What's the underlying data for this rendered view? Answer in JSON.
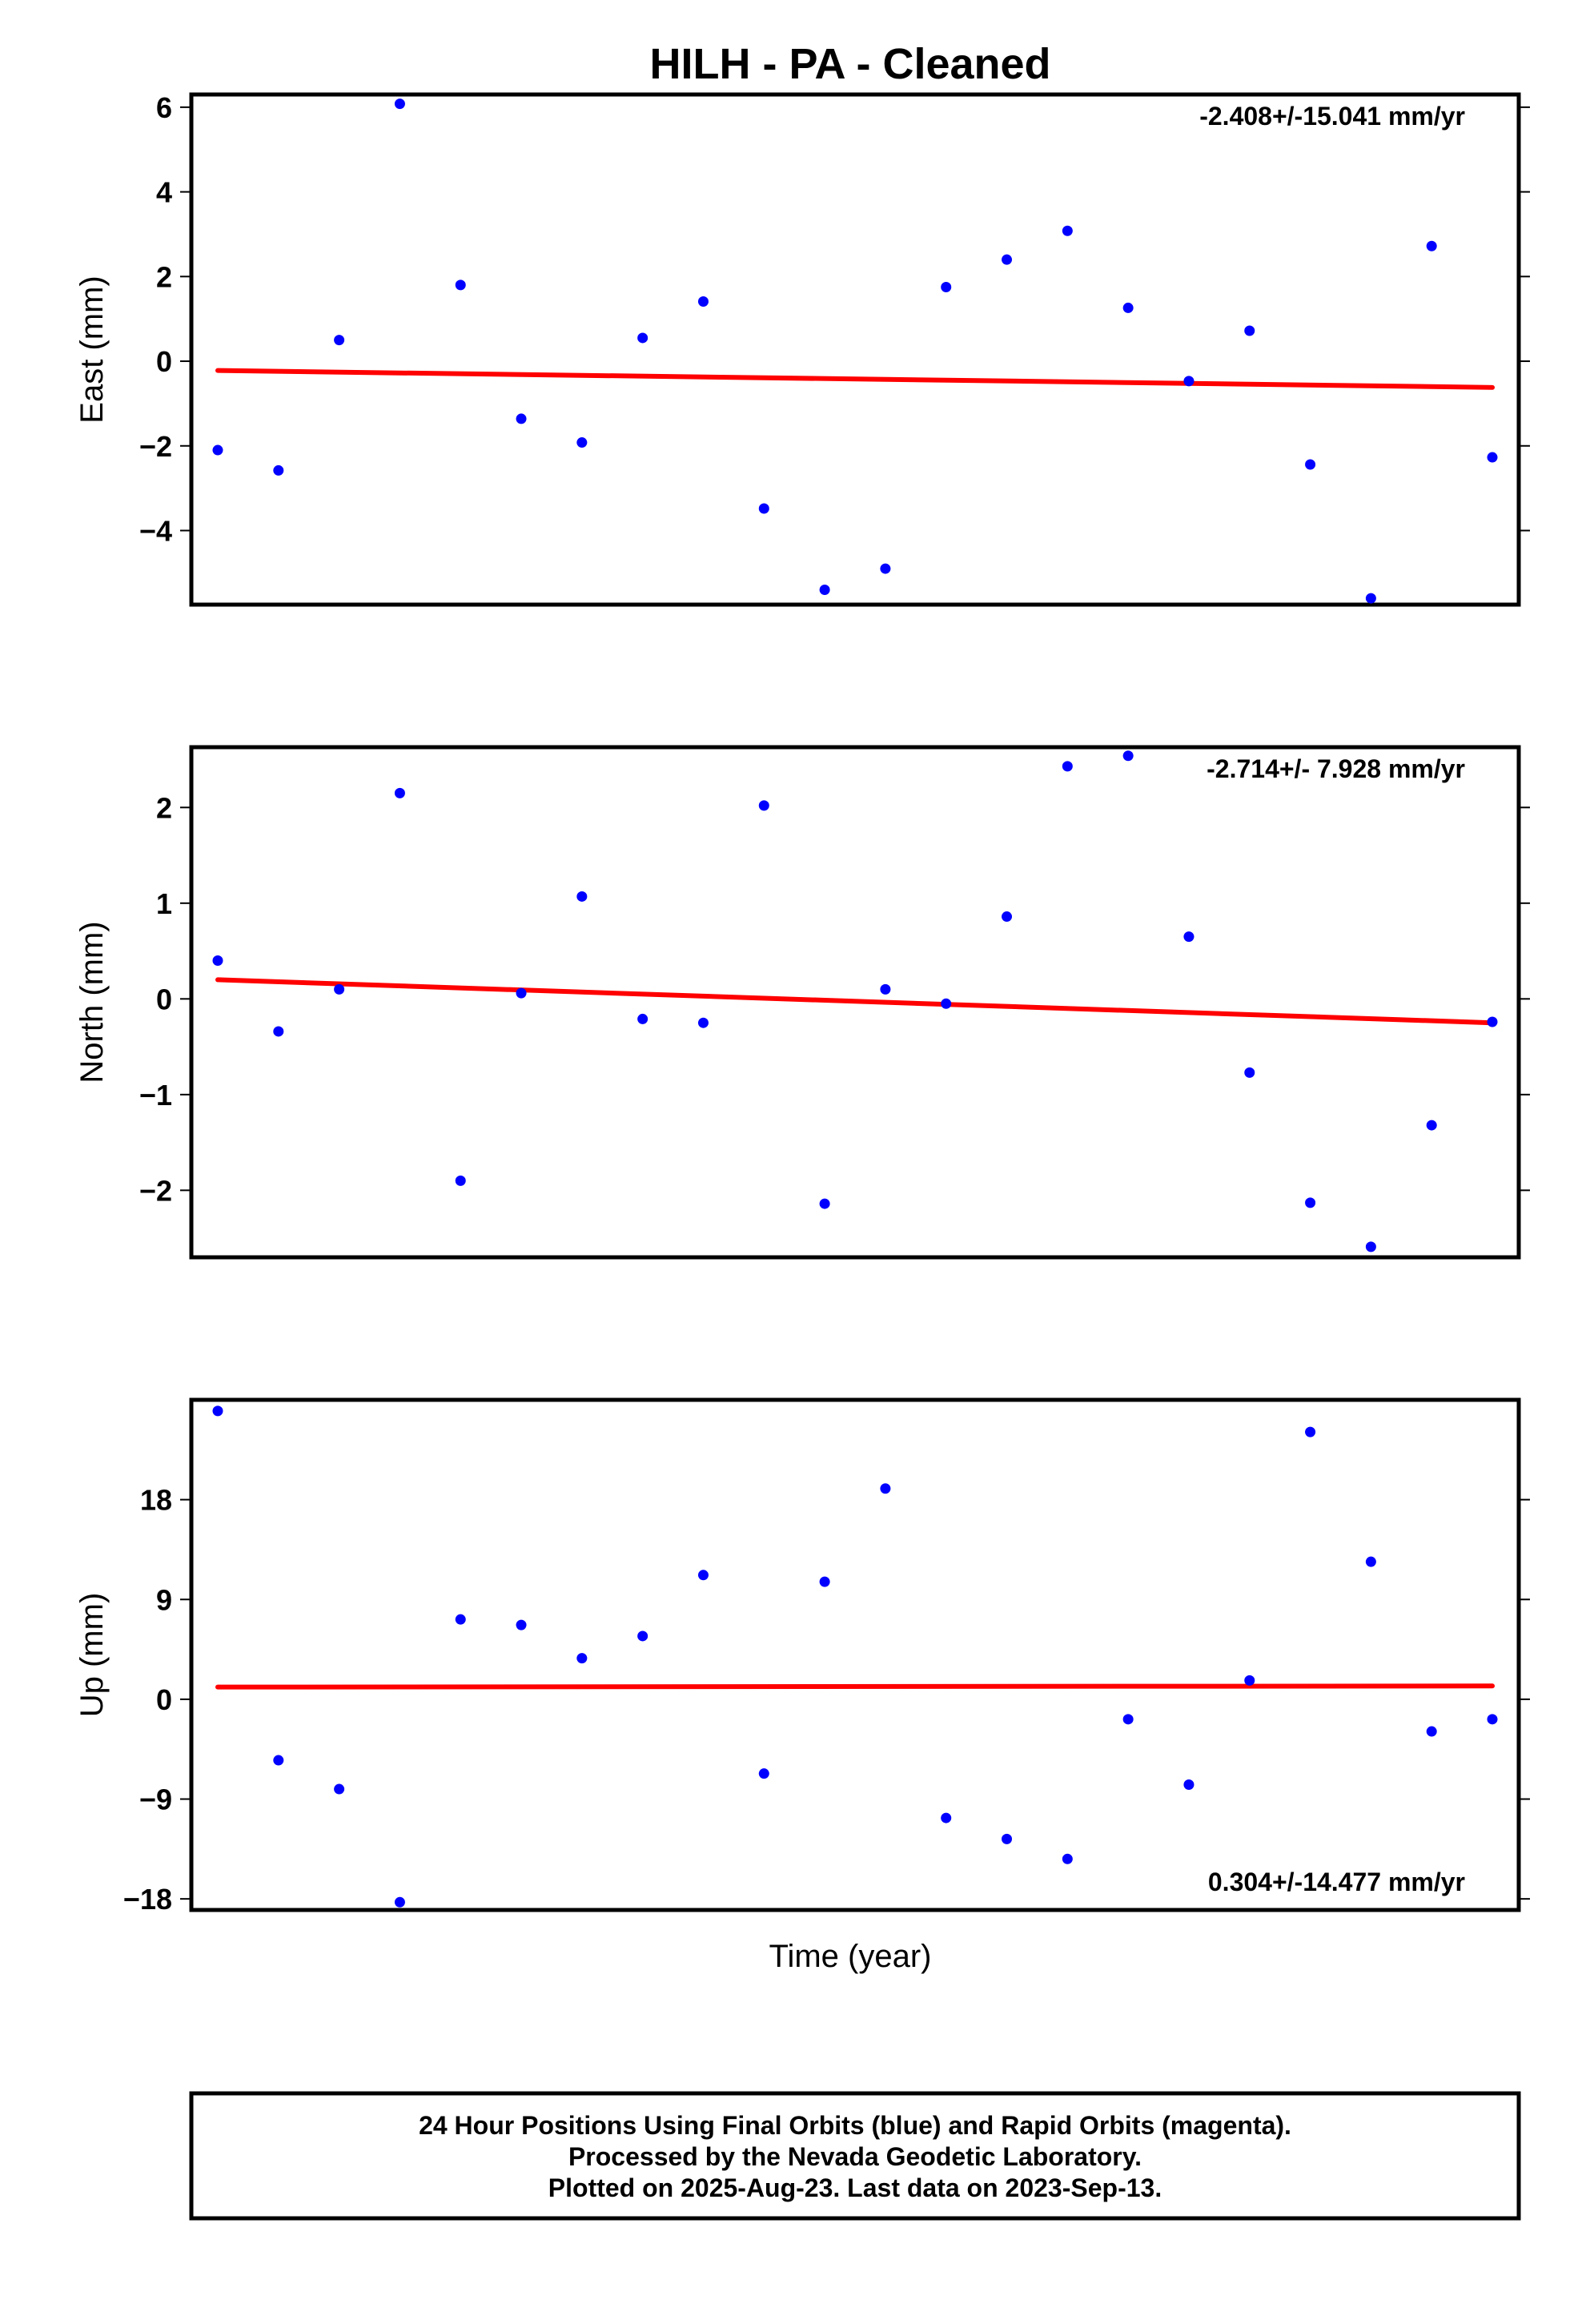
{
  "title": "HILH  - PA - Cleaned",
  "xlabel": "Time (year)",
  "footer": {
    "line1": "24 Hour Positions Using Final Orbits (blue) and Rapid Orbits (magenta).",
    "line2": "Processed by the Nevada Geodetic Laboratory.",
    "line3": "Plotted on 2025-Aug-23. Last data on 2023-Sep-13."
  },
  "colors": {
    "points": "#0000ff",
    "trend": "#ff0000",
    "frame": "#000000"
  },
  "chart_data": [
    {
      "type": "scatter",
      "panel": "east",
      "ylabel": "East (mm)",
      "rate_label": "-2.408+/-15.041 mm/yr",
      "rate_position": "top-right",
      "ylim": [
        -5.75,
        6.3
      ],
      "yticks": [
        6,
        4,
        2,
        0,
        -2,
        -4
      ],
      "ytick_labels": [
        "6",
        "4",
        "2",
        "0",
        "−2",
        "−4"
      ],
      "grid": false,
      "values": [
        -2.1,
        -2.58,
        0.5,
        6.08,
        1.8,
        -1.36,
        -1.92,
        0.55,
        1.41,
        -3.48,
        -5.4,
        -4.9,
        1.75,
        2.4,
        3.08,
        1.26,
        -0.47,
        0.72,
        -2.44,
        -5.6,
        2.72,
        -2.27
      ],
      "trend": [
        -0.22,
        -0.62
      ]
    },
    {
      "type": "scatter",
      "panel": "north",
      "ylabel": "North (mm)",
      "rate_label": "-2.714+/- 7.928 mm/yr",
      "rate_position": "top-right",
      "ylim": [
        -2.7,
        2.63
      ],
      "yticks": [
        2,
        1,
        0,
        -1,
        -2
      ],
      "ytick_labels": [
        "2",
        "1",
        "0",
        "−1",
        "−2"
      ],
      "grid": false,
      "values": [
        0.4,
        -0.34,
        0.1,
        2.15,
        -1.9,
        0.06,
        1.07,
        -0.21,
        -0.25,
        2.02,
        -2.14,
        0.1,
        -0.05,
        0.86,
        2.43,
        2.54,
        0.65,
        -0.77,
        -2.13,
        -2.59,
        -1.32,
        -0.24
      ],
      "trend": [
        0.2,
        -0.25
      ]
    },
    {
      "type": "scatter",
      "panel": "up",
      "ylabel": "Up (mm)",
      "rate_label": "0.304+/-14.477 mm/yr",
      "rate_position": "bottom-right",
      "ylim": [
        -19.0,
        27.0
      ],
      "yticks": [
        18,
        9,
        0,
        -9,
        -18
      ],
      "ytick_labels": [
        "18",
        "9",
        "0",
        "−9",
        "−18"
      ],
      "grid": false,
      "values": [
        26.0,
        -5.5,
        -8.1,
        -18.3,
        7.2,
        6.7,
        3.7,
        5.7,
        11.2,
        -6.7,
        10.6,
        19.0,
        -10.7,
        -12.6,
        -14.4,
        -1.8,
        -7.7,
        1.7,
        24.1,
        12.4,
        -2.9,
        -1.8
      ],
      "trend": [
        1.1,
        1.2
      ]
    }
  ]
}
